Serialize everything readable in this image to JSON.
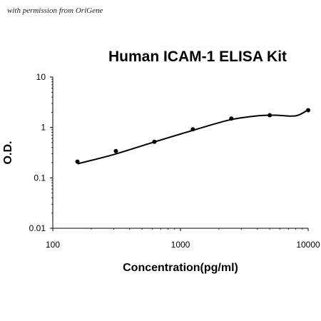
{
  "credit_text": "with permission from OriGene",
  "chart_data": {
    "type": "scatter",
    "title": "Human ICAM-1 ELISA Kit",
    "xlabel": "Concentration(pg/ml)",
    "ylabel": "O.D.",
    "x_scale": "log",
    "y_scale": "log",
    "xlim": [
      100,
      10000
    ],
    "ylim": [
      0.01,
      10
    ],
    "x_ticks": [
      "100",
      "1000",
      "10000"
    ],
    "y_ticks": [
      "10",
      "1",
      "0.1",
      "0.01"
    ],
    "grid": false,
    "legend": "none",
    "points": [
      {
        "x": 156,
        "y": 0.21
      },
      {
        "x": 312,
        "y": 0.34
      },
      {
        "x": 625,
        "y": 0.52
      },
      {
        "x": 1250,
        "y": 0.92
      },
      {
        "x": 2500,
        "y": 1.5
      },
      {
        "x": 5000,
        "y": 1.75
      },
      {
        "x": 10000,
        "y": 2.2
      }
    ],
    "fit_curve": [
      {
        "x": 156,
        "y": 0.19
      },
      {
        "x": 300,
        "y": 0.29
      },
      {
        "x": 600,
        "y": 0.5
      },
      {
        "x": 1200,
        "y": 0.85
      },
      {
        "x": 2400,
        "y": 1.4
      },
      {
        "x": 4000,
        "y": 1.7
      },
      {
        "x": 5500,
        "y": 1.75
      },
      {
        "x": 8000,
        "y": 1.7
      },
      {
        "x": 10000,
        "y": 2.25
      }
    ],
    "colors": {
      "line": "#000000",
      "points": "#000000"
    }
  }
}
